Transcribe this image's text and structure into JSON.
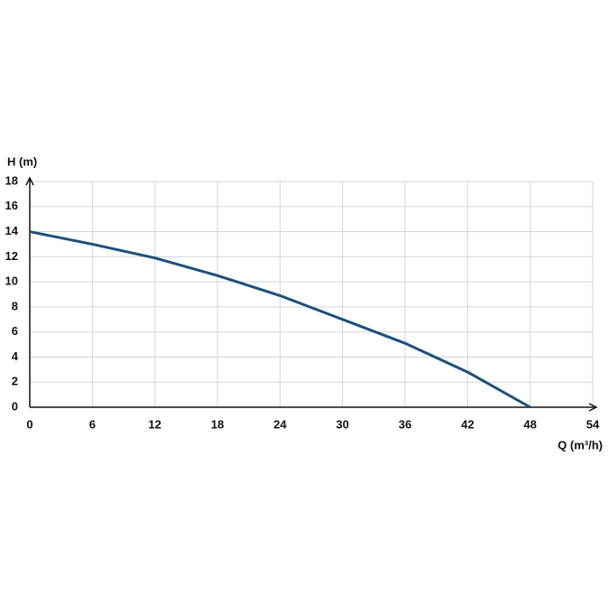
{
  "chart_data": {
    "type": "line",
    "y_label": "H (m)",
    "x_label": "Q (m³/h)",
    "x": [
      0,
      6,
      12,
      18,
      24,
      30,
      36,
      42,
      48
    ],
    "series": [
      {
        "name": "H",
        "color": "#1d4f7c",
        "values": [
          14,
          13,
          11.9,
          10.5,
          8.9,
          7.0,
          5.1,
          2.8,
          0
        ]
      }
    ],
    "xlim": [
      0,
      54
    ],
    "xticks": [
      0,
      6,
      12,
      18,
      24,
      30,
      36,
      42,
      48,
      54
    ],
    "ylim": [
      0,
      18
    ],
    "yticks": [
      0,
      2,
      4,
      6,
      8,
      10,
      12,
      14,
      16,
      18
    ],
    "grid": true
  }
}
